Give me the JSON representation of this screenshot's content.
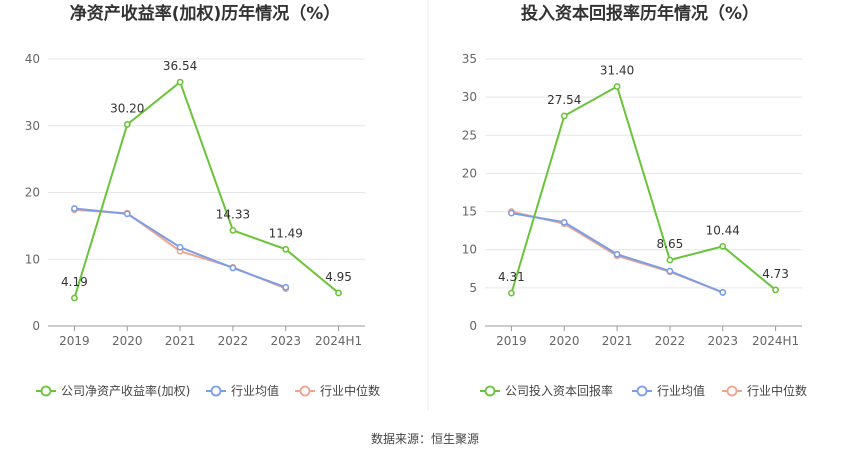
{
  "source_label": "数据来源：恒生聚源",
  "colors": {
    "company": "#6ac43a",
    "avg": "#7b9ee6",
    "median": "#f0a48c",
    "divider": "#eeeeee"
  },
  "chart_data": [
    {
      "type": "line",
      "title": "净资产收益率(加权)历年情况（%）",
      "categories": [
        "2019",
        "2020",
        "2021",
        "2022",
        "2023",
        "2024H1"
      ],
      "ylim": [
        0,
        40
      ],
      "yticks": [
        0,
        10,
        20,
        30,
        40
      ],
      "grid": true,
      "legend": "bottom",
      "series": [
        {
          "name": "公司净资产收益率(加权)",
          "values": [
            4.19,
            30.2,
            36.54,
            14.33,
            11.49,
            4.95
          ],
          "labels": [
            "4.19",
            "30.20",
            "36.54",
            "14.33",
            "11.49",
            "4.95"
          ],
          "color": "#6ac43a"
        },
        {
          "name": "行业均值",
          "values": [
            17.6,
            16.8,
            11.8,
            8.7,
            5.8,
            null
          ],
          "color": "#7b9ee6"
        },
        {
          "name": "行业中位数",
          "values": [
            17.4,
            16.9,
            11.2,
            8.8,
            5.6,
            null
          ],
          "color": "#f0a48c"
        }
      ]
    },
    {
      "type": "line",
      "title": "投入资本回报率历年情况（%）",
      "categories": [
        "2019",
        "2020",
        "2021",
        "2022",
        "2023",
        "2024H1"
      ],
      "ylim": [
        0,
        35
      ],
      "yticks": [
        0,
        5,
        10,
        15,
        20,
        25,
        30,
        35
      ],
      "grid": true,
      "legend": "bottom",
      "series": [
        {
          "name": "公司投入资本回报率",
          "values": [
            4.31,
            27.54,
            31.4,
            8.65,
            10.44,
            4.73
          ],
          "labels": [
            "4.31",
            "27.54",
            "31.40",
            "8.65",
            "10.44",
            "4.73"
          ],
          "color": "#6ac43a"
        },
        {
          "name": "行业均值",
          "values": [
            14.8,
            13.6,
            9.4,
            7.2,
            4.4,
            null
          ],
          "color": "#7b9ee6"
        },
        {
          "name": "行业中位数",
          "values": [
            15.0,
            13.4,
            9.2,
            7.1,
            4.4,
            null
          ],
          "color": "#f0a48c"
        }
      ]
    }
  ]
}
